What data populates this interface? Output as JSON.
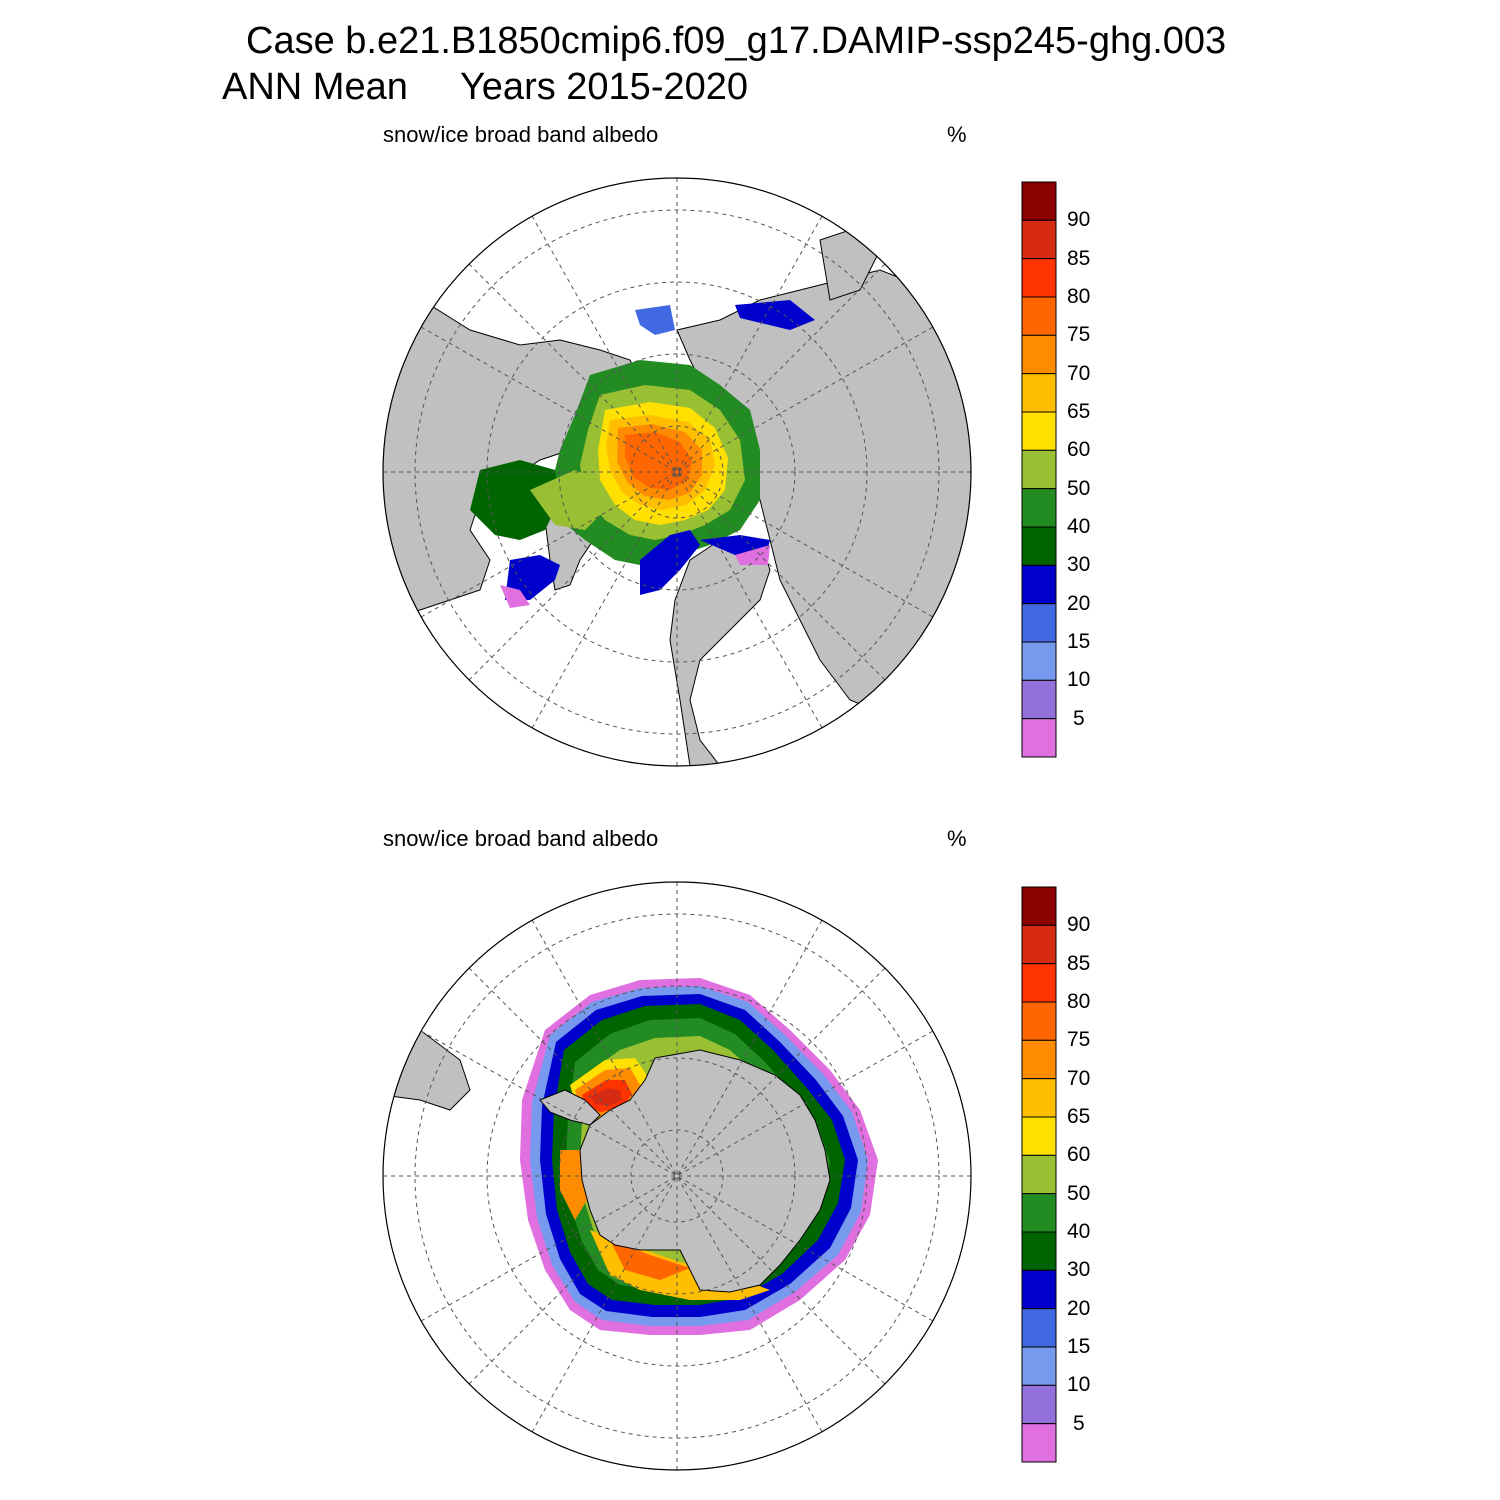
{
  "title": {
    "line1": "Case b.e21.B1850cmip6.f09_g17.DAMIP-ssp245-ghg.003",
    "line2": "ANN Mean     Years 2015-2020"
  },
  "panels": [
    {
      "id": "nh",
      "label": "snow/ice broad band albedo",
      "units": "%"
    },
    {
      "id": "sh",
      "label": "snow/ice broad band albedo",
      "units": "%"
    }
  ],
  "colorbar": {
    "labels": [
      "90",
      "85",
      "80",
      "75",
      "70",
      "65",
      "60",
      "50",
      "40",
      "30",
      "20",
      "15",
      "10",
      "5"
    ],
    "colors": [
      "#8b0000",
      "#d62a12",
      "#ff3300",
      "#ff6600",
      "#ff8c00",
      "#ffbf00",
      "#ffe000",
      "#99bf33",
      "#228b22",
      "#006400",
      "#0000cd",
      "#4169e1",
      "#7799ee",
      "#9370db",
      "#e070e0"
    ]
  },
  "map_colors": {
    "land": "#c0c0c0",
    "ocean": "#ffffff",
    "grid": "#555555"
  }
}
